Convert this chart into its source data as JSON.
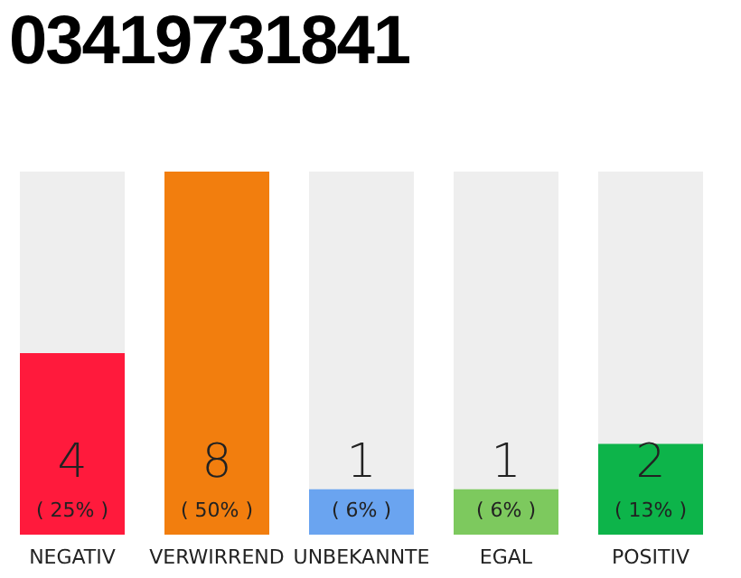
{
  "chart_data": {
    "type": "bar",
    "title": "03419731841",
    "categories": [
      "NEGATIV",
      "VERWIRREND",
      "UNBEKANNTE",
      "EGAL",
      "POSITIV"
    ],
    "values": [
      4,
      8,
      1,
      1,
      2
    ],
    "colors": [
      "#ff1a3c",
      "#f27e0e",
      "#6aa4f0",
      "#7dc95e",
      "#0db44a"
    ],
    "data_labels": true,
    "annotations": [
      "( 25% )",
      "( 50% )",
      "( 6% )",
      "( 6% )",
      "( 13% )"
    ]
  }
}
